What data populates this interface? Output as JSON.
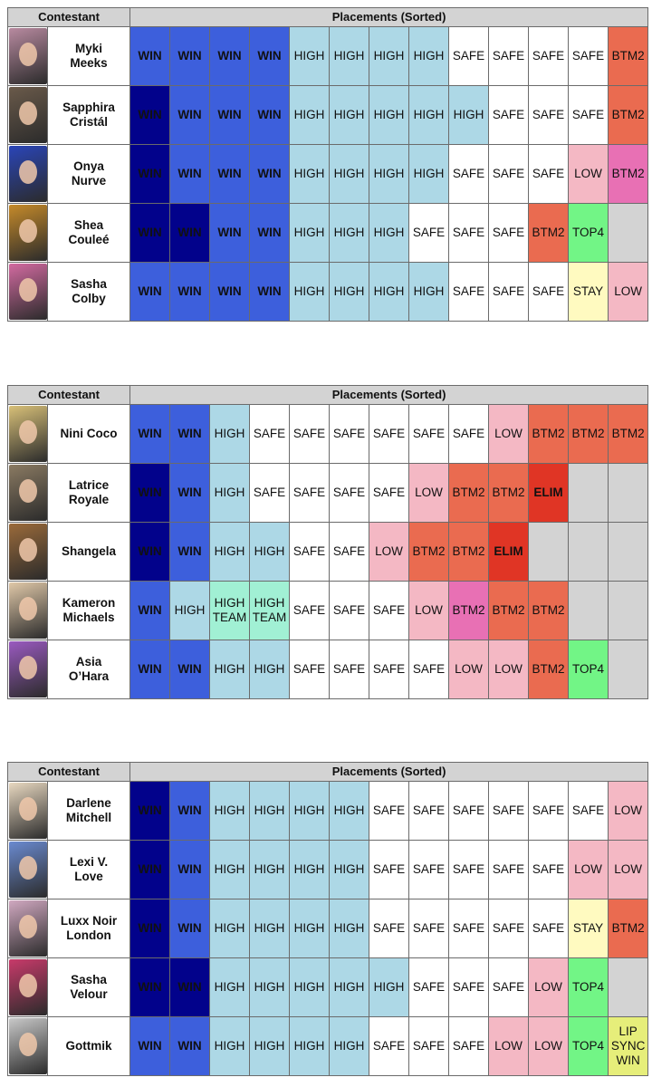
{
  "tables": [
    {
      "header": {
        "contestant": "Contestant",
        "placements": "Placements (Sorted)"
      },
      "rows": [
        {
          "name": "Myki\nMeeks",
          "photo_color": "#b88aa0",
          "placements": [
            {
              "t": "WIN",
              "c": "win"
            },
            {
              "t": "WIN",
              "c": "win"
            },
            {
              "t": "WIN",
              "c": "win"
            },
            {
              "t": "WIN",
              "c": "win"
            },
            {
              "t": "HIGH",
              "c": "high"
            },
            {
              "t": "HIGH",
              "c": "high"
            },
            {
              "t": "HIGH",
              "c": "high"
            },
            {
              "t": "HIGH",
              "c": "high"
            },
            {
              "t": "SAFE",
              "c": "safe"
            },
            {
              "t": "SAFE",
              "c": "safe"
            },
            {
              "t": "SAFE",
              "c": "safe"
            },
            {
              "t": "SAFE",
              "c": "safe"
            },
            {
              "t": "BTM2",
              "c": "btm2"
            }
          ]
        },
        {
          "name": "Sapphira\nCristál",
          "photo_color": "#6a5a4a",
          "placements": [
            {
              "t": "WIN",
              "c": "winD"
            },
            {
              "t": "WIN",
              "c": "win"
            },
            {
              "t": "WIN",
              "c": "win"
            },
            {
              "t": "WIN",
              "c": "win"
            },
            {
              "t": "HIGH",
              "c": "high"
            },
            {
              "t": "HIGH",
              "c": "high"
            },
            {
              "t": "HIGH",
              "c": "high"
            },
            {
              "t": "HIGH",
              "c": "high"
            },
            {
              "t": "HIGH",
              "c": "high"
            },
            {
              "t": "SAFE",
              "c": "safe"
            },
            {
              "t": "SAFE",
              "c": "safe"
            },
            {
              "t": "SAFE",
              "c": "safe"
            },
            {
              "t": "BTM2",
              "c": "btm2"
            }
          ]
        },
        {
          "name": "Onya\nNurve",
          "photo_color": "#2a45b8",
          "placements": [
            {
              "t": "WIN",
              "c": "winD"
            },
            {
              "t": "WIN",
              "c": "win"
            },
            {
              "t": "WIN",
              "c": "win"
            },
            {
              "t": "WIN",
              "c": "win"
            },
            {
              "t": "HIGH",
              "c": "high"
            },
            {
              "t": "HIGH",
              "c": "high"
            },
            {
              "t": "HIGH",
              "c": "high"
            },
            {
              "t": "HIGH",
              "c": "high"
            },
            {
              "t": "SAFE",
              "c": "safe"
            },
            {
              "t": "SAFE",
              "c": "safe"
            },
            {
              "t": "SAFE",
              "c": "safe"
            },
            {
              "t": "LOW",
              "c": "low"
            },
            {
              "t": "BTM2",
              "c": "btm2p"
            }
          ]
        },
        {
          "name": "Shea\nCouleé",
          "photo_color": "#c58a2a",
          "placements": [
            {
              "t": "WIN",
              "c": "winD"
            },
            {
              "t": "WIN",
              "c": "winD"
            },
            {
              "t": "WIN",
              "c": "win"
            },
            {
              "t": "WIN",
              "c": "win"
            },
            {
              "t": "HIGH",
              "c": "high"
            },
            {
              "t": "HIGH",
              "c": "high"
            },
            {
              "t": "HIGH",
              "c": "high"
            },
            {
              "t": "SAFE",
              "c": "safe"
            },
            {
              "t": "SAFE",
              "c": "safe"
            },
            {
              "t": "SAFE",
              "c": "safe"
            },
            {
              "t": "BTM2",
              "c": "btm2"
            },
            {
              "t": "TOP4",
              "c": "top4"
            },
            {
              "t": "",
              "c": "blank"
            }
          ]
        },
        {
          "name": "Sasha\nColby",
          "photo_color": "#d26aa0",
          "placements": [
            {
              "t": "WIN",
              "c": "win"
            },
            {
              "t": "WIN",
              "c": "win"
            },
            {
              "t": "WIN",
              "c": "win"
            },
            {
              "t": "WIN",
              "c": "win"
            },
            {
              "t": "HIGH",
              "c": "high"
            },
            {
              "t": "HIGH",
              "c": "high"
            },
            {
              "t": "HIGH",
              "c": "high"
            },
            {
              "t": "HIGH",
              "c": "high"
            },
            {
              "t": "SAFE",
              "c": "safe"
            },
            {
              "t": "SAFE",
              "c": "safe"
            },
            {
              "t": "SAFE",
              "c": "safe"
            },
            {
              "t": "STAY",
              "c": "stay"
            },
            {
              "t": "LOW",
              "c": "low"
            }
          ]
        }
      ]
    },
    {
      "header": {
        "contestant": "Contestant",
        "placements": "Placements (Sorted)"
      },
      "rows": [
        {
          "name": "Nini Coco",
          "photo_color": "#d8c078",
          "placements": [
            {
              "t": "WIN",
              "c": "win"
            },
            {
              "t": "WIN",
              "c": "win"
            },
            {
              "t": "HIGH",
              "c": "high"
            },
            {
              "t": "SAFE",
              "c": "safe"
            },
            {
              "t": "SAFE",
              "c": "safe"
            },
            {
              "t": "SAFE",
              "c": "safe"
            },
            {
              "t": "SAFE",
              "c": "safe"
            },
            {
              "t": "SAFE",
              "c": "safe"
            },
            {
              "t": "SAFE",
              "c": "safe"
            },
            {
              "t": "LOW",
              "c": "low"
            },
            {
              "t": "BTM2",
              "c": "btm2"
            },
            {
              "t": "BTM2",
              "c": "btm2"
            },
            {
              "t": "BTM2",
              "c": "btm2"
            }
          ]
        },
        {
          "name": "Latrice\nRoyale",
          "photo_color": "#8a7a62",
          "placements": [
            {
              "t": "WIN",
              "c": "winD"
            },
            {
              "t": "WIN",
              "c": "win"
            },
            {
              "t": "HIGH",
              "c": "high"
            },
            {
              "t": "SAFE",
              "c": "safe"
            },
            {
              "t": "SAFE",
              "c": "safe"
            },
            {
              "t": "SAFE",
              "c": "safe"
            },
            {
              "t": "SAFE",
              "c": "safe"
            },
            {
              "t": "LOW",
              "c": "low"
            },
            {
              "t": "BTM2",
              "c": "btm2"
            },
            {
              "t": "BTM2",
              "c": "btm2"
            },
            {
              "t": "ELIM",
              "c": "elim"
            },
            {
              "t": "",
              "c": "blank"
            },
            {
              "t": "",
              "c": "blank"
            }
          ]
        },
        {
          "name": "Shangela",
          "photo_color": "#9a6a3a",
          "placements": [
            {
              "t": "WIN",
              "c": "winD"
            },
            {
              "t": "WIN",
              "c": "win"
            },
            {
              "t": "HIGH",
              "c": "high"
            },
            {
              "t": "HIGH",
              "c": "high"
            },
            {
              "t": "SAFE",
              "c": "safe"
            },
            {
              "t": "SAFE",
              "c": "safe"
            },
            {
              "t": "LOW",
              "c": "low"
            },
            {
              "t": "BTM2",
              "c": "btm2"
            },
            {
              "t": "BTM2",
              "c": "btm2"
            },
            {
              "t": "ELIM",
              "c": "elim"
            },
            {
              "t": "",
              "c": "blank"
            },
            {
              "t": "",
              "c": "blank"
            },
            {
              "t": "",
              "c": "blank"
            }
          ]
        },
        {
          "name": "Kameron\nMichaels",
          "photo_color": "#e0c8a8",
          "placements": [
            {
              "t": "WIN",
              "c": "win"
            },
            {
              "t": "HIGH",
              "c": "high"
            },
            {
              "t": "HIGH\nTEAM",
              "c": "team"
            },
            {
              "t": "HIGH\nTEAM",
              "c": "team"
            },
            {
              "t": "SAFE",
              "c": "safe"
            },
            {
              "t": "SAFE",
              "c": "safe"
            },
            {
              "t": "SAFE",
              "c": "safe"
            },
            {
              "t": "LOW",
              "c": "low"
            },
            {
              "t": "BTM2",
              "c": "btm2p"
            },
            {
              "t": "BTM2",
              "c": "btm2"
            },
            {
              "t": "BTM2",
              "c": "btm2"
            },
            {
              "t": "",
              "c": "blank"
            },
            {
              "t": "",
              "c": "blank"
            }
          ]
        },
        {
          "name": "Asia\nO’Hara",
          "photo_color": "#9a5ac0",
          "placements": [
            {
              "t": "WIN",
              "c": "win"
            },
            {
              "t": "WIN",
              "c": "win"
            },
            {
              "t": "HIGH",
              "c": "high"
            },
            {
              "t": "HIGH",
              "c": "high"
            },
            {
              "t": "SAFE",
              "c": "safe"
            },
            {
              "t": "SAFE",
              "c": "safe"
            },
            {
              "t": "SAFE",
              "c": "safe"
            },
            {
              "t": "SAFE",
              "c": "safe"
            },
            {
              "t": "LOW",
              "c": "low"
            },
            {
              "t": "LOW",
              "c": "low"
            },
            {
              "t": "BTM2",
              "c": "btm2"
            },
            {
              "t": "TOP4",
              "c": "top4"
            },
            {
              "t": "",
              "c": "blank"
            }
          ]
        }
      ]
    },
    {
      "header": {
        "contestant": "Contestant",
        "placements": "Placements (Sorted)"
      },
      "rows": [
        {
          "name": "Darlene\nMitchell",
          "photo_color": "#e8d8c0",
          "placements": [
            {
              "t": "WIN",
              "c": "winD"
            },
            {
              "t": "WIN",
              "c": "win"
            },
            {
              "t": "HIGH",
              "c": "high"
            },
            {
              "t": "HIGH",
              "c": "high"
            },
            {
              "t": "HIGH",
              "c": "high"
            },
            {
              "t": "HIGH",
              "c": "high"
            },
            {
              "t": "SAFE",
              "c": "safe"
            },
            {
              "t": "SAFE",
              "c": "safe"
            },
            {
              "t": "SAFE",
              "c": "safe"
            },
            {
              "t": "SAFE",
              "c": "safe"
            },
            {
              "t": "SAFE",
              "c": "safe"
            },
            {
              "t": "SAFE",
              "c": "safe"
            },
            {
              "t": "LOW",
              "c": "low"
            }
          ]
        },
        {
          "name": "Lexi V.\nLove",
          "photo_color": "#6a8ad0",
          "placements": [
            {
              "t": "WIN",
              "c": "winD"
            },
            {
              "t": "WIN",
              "c": "win"
            },
            {
              "t": "HIGH",
              "c": "high"
            },
            {
              "t": "HIGH",
              "c": "high"
            },
            {
              "t": "HIGH",
              "c": "high"
            },
            {
              "t": "HIGH",
              "c": "high"
            },
            {
              "t": "SAFE",
              "c": "safe"
            },
            {
              "t": "SAFE",
              "c": "safe"
            },
            {
              "t": "SAFE",
              "c": "safe"
            },
            {
              "t": "SAFE",
              "c": "safe"
            },
            {
              "t": "SAFE",
              "c": "safe"
            },
            {
              "t": "LOW",
              "c": "low"
            },
            {
              "t": "LOW",
              "c": "low"
            }
          ]
        },
        {
          "name": "Luxx Noir\nLondon",
          "photo_color": "#d0a8c0",
          "placements": [
            {
              "t": "WIN",
              "c": "winD"
            },
            {
              "t": "WIN",
              "c": "win"
            },
            {
              "t": "HIGH",
              "c": "high"
            },
            {
              "t": "HIGH",
              "c": "high"
            },
            {
              "t": "HIGH",
              "c": "high"
            },
            {
              "t": "HIGH",
              "c": "high"
            },
            {
              "t": "SAFE",
              "c": "safe"
            },
            {
              "t": "SAFE",
              "c": "safe"
            },
            {
              "t": "SAFE",
              "c": "safe"
            },
            {
              "t": "SAFE",
              "c": "safe"
            },
            {
              "t": "SAFE",
              "c": "safe"
            },
            {
              "t": "STAY",
              "c": "stay"
            },
            {
              "t": "BTM2",
              "c": "btm2"
            }
          ]
        },
        {
          "name": "Sasha\nVelour",
          "photo_color": "#c83a6a",
          "placements": [
            {
              "t": "WIN",
              "c": "winD"
            },
            {
              "t": "WIN",
              "c": "winD"
            },
            {
              "t": "HIGH",
              "c": "high"
            },
            {
              "t": "HIGH",
              "c": "high"
            },
            {
              "t": "HIGH",
              "c": "high"
            },
            {
              "t": "HIGH",
              "c": "high"
            },
            {
              "t": "HIGH",
              "c": "high"
            },
            {
              "t": "SAFE",
              "c": "safe"
            },
            {
              "t": "SAFE",
              "c": "safe"
            },
            {
              "t": "SAFE",
              "c": "safe"
            },
            {
              "t": "LOW",
              "c": "low"
            },
            {
              "t": "TOP4",
              "c": "top4"
            },
            {
              "t": "",
              "c": "blank"
            }
          ]
        },
        {
          "name": "Gottmik",
          "photo_color": "#c8c8c8",
          "placements": [
            {
              "t": "WIN",
              "c": "win"
            },
            {
              "t": "WIN",
              "c": "win"
            },
            {
              "t": "HIGH",
              "c": "high"
            },
            {
              "t": "HIGH",
              "c": "high"
            },
            {
              "t": "HIGH",
              "c": "high"
            },
            {
              "t": "HIGH",
              "c": "high"
            },
            {
              "t": "SAFE",
              "c": "safe"
            },
            {
              "t": "SAFE",
              "c": "safe"
            },
            {
              "t": "SAFE",
              "c": "safe"
            },
            {
              "t": "LOW",
              "c": "low"
            },
            {
              "t": "LOW",
              "c": "low"
            },
            {
              "t": "TOP4",
              "c": "top4"
            },
            {
              "t": "LIP\nSYNC\nWIN",
              "c": "lsw"
            }
          ]
        }
      ]
    }
  ]
}
